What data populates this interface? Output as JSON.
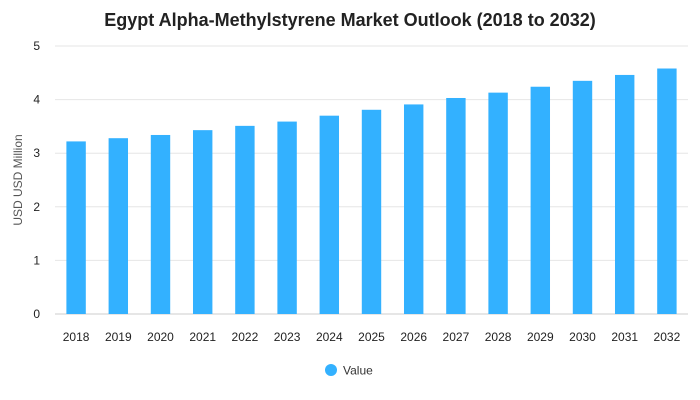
{
  "chart_data": {
    "type": "bar",
    "title": "Egypt Alpha-Methylstyrene Market Outlook (2018 to 2032)",
    "xlabel": "",
    "ylabel": "USD USD Million",
    "ylim": [
      0,
      5
    ],
    "yticks": [
      "0",
      "1",
      "2",
      "3",
      "4",
      "5"
    ],
    "grid": true,
    "legend_position": "bottom",
    "categories": [
      "2018",
      "2019",
      "2020",
      "2021",
      "2022",
      "2023",
      "2024",
      "2025",
      "2026",
      "2027",
      "2028",
      "2029",
      "2030",
      "2031",
      "2032"
    ],
    "series": [
      {
        "name": "Value",
        "color": "#33b1ff",
        "values": [
          3.22,
          3.28,
          3.34,
          3.43,
          3.51,
          3.59,
          3.7,
          3.81,
          3.91,
          4.03,
          4.13,
          4.24,
          4.35,
          4.46,
          4.58
        ]
      }
    ]
  }
}
